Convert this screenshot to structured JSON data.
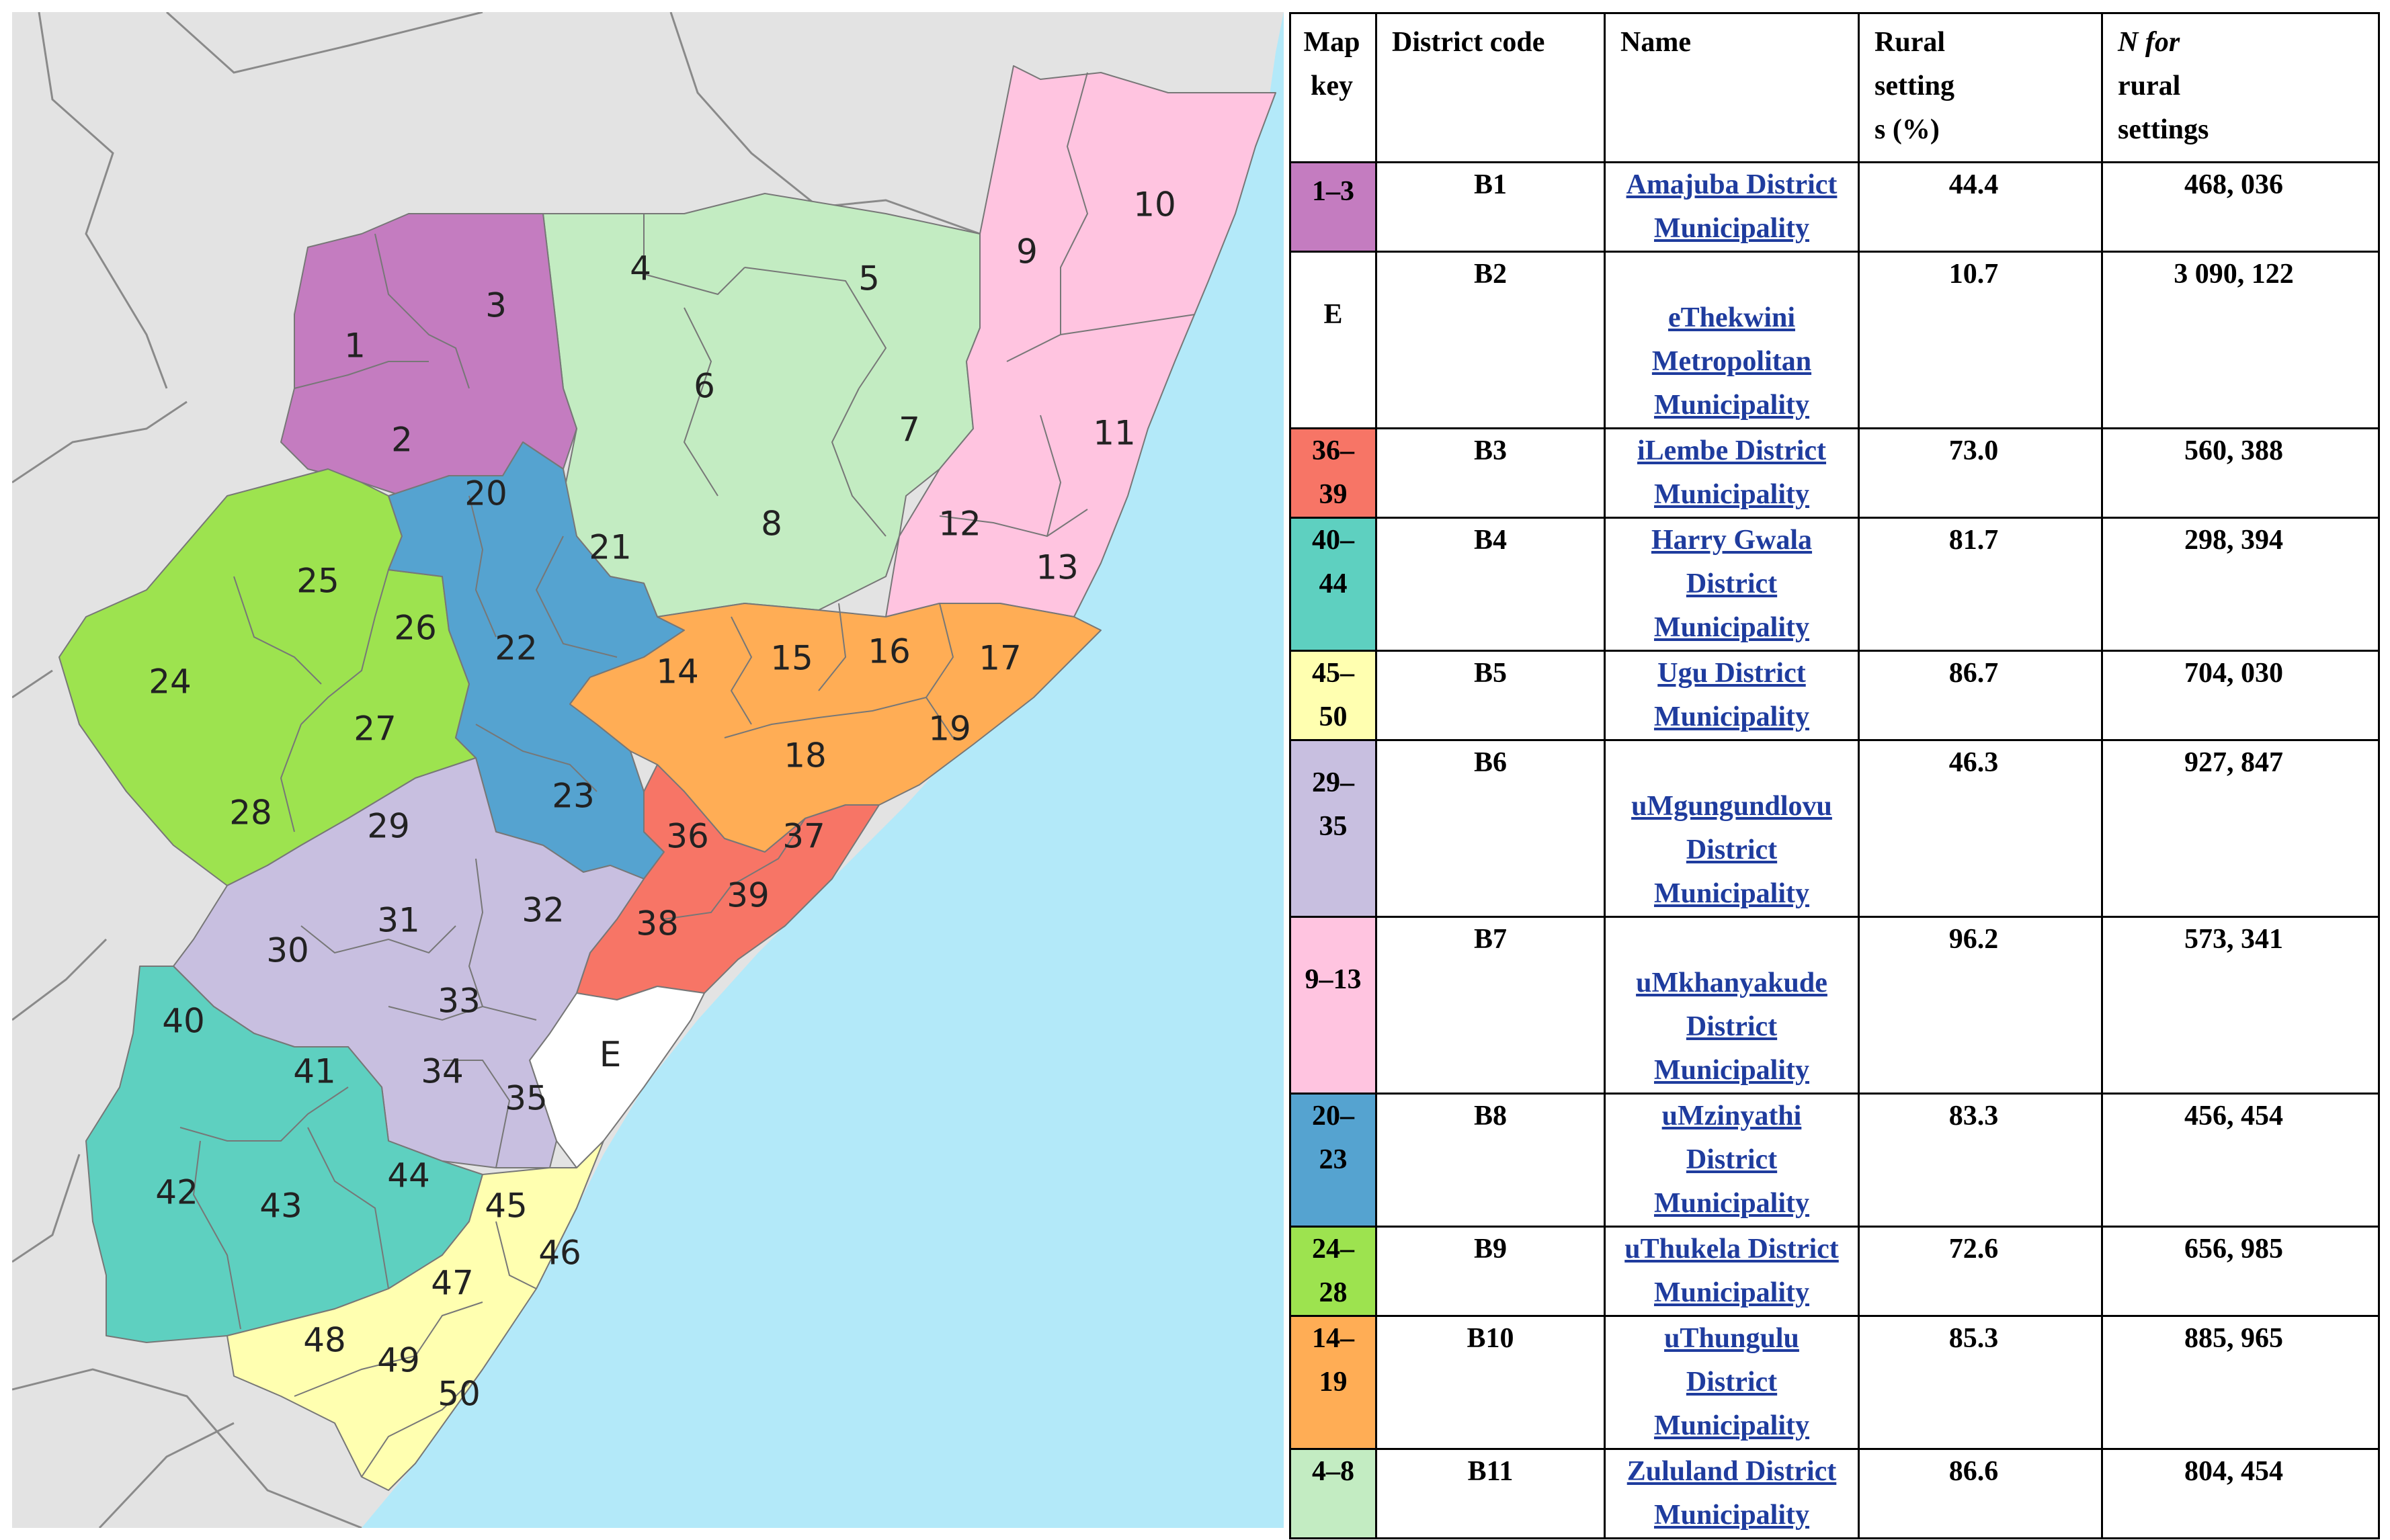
{
  "colors": {
    "sea": "#b3e9f9",
    "land_outside": "#e3e3e3",
    "border_outside": "#8a8a8a",
    "B1": "#c47cc0",
    "E": "#ffffff",
    "B3": "#f77566",
    "B4": "#5ed0c0",
    "B5": "#ffffb0",
    "B6": "#c8bfe0",
    "B7": "#ffc4e0",
    "B8": "#55a3d0",
    "B9": "#9de34f",
    "B10": "#ffad55",
    "B11": "#c3ecc2"
  },
  "map": {
    "labels": [
      "1",
      "2",
      "3",
      "4",
      "5",
      "6",
      "7",
      "8",
      "9",
      "10",
      "11",
      "12",
      "13",
      "14",
      "15",
      "16",
      "17",
      "18",
      "19",
      "20",
      "21",
      "22",
      "23",
      "24",
      "25",
      "26",
      "27",
      "28",
      "29",
      "30",
      "31",
      "32",
      "33",
      "34",
      "35",
      "36",
      "37",
      "38",
      "39",
      "40",
      "41",
      "42",
      "43",
      "44",
      "45",
      "46",
      "47",
      "48",
      "49",
      "50",
      "E"
    ]
  },
  "table": {
    "headers": {
      "map_key": [
        "Map",
        "key"
      ],
      "district_code": "District code",
      "name": "Name",
      "rural": [
        "Rural",
        "setting",
        "s (%)"
      ],
      "n_rural": [
        "N for",
        "rural",
        "settings"
      ]
    },
    "rows": [
      {
        "key": [
          "1–3"
        ],
        "key_color": "#c47cc0",
        "code": "B1",
        "name": [
          "Amajuba District",
          "Municipality"
        ],
        "rural": "44.4",
        "n": "468, 036"
      },
      {
        "key": [
          "E"
        ],
        "key_color": "#ffffff",
        "code": "B2",
        "name": [
          "eThekwini",
          "Metropolitan",
          "Municipality"
        ],
        "rural": "10.7",
        "n": "3 090, 122"
      },
      {
        "key": [
          "36–",
          "39"
        ],
        "key_color": "#f77566",
        "code": "B3",
        "name": [
          "iLembe District",
          "Municipality"
        ],
        "rural": "73.0",
        "n": "560, 388"
      },
      {
        "key": [
          "40–",
          "44"
        ],
        "key_color": "#5ed0c0",
        "code": "B4",
        "name": [
          "Harry Gwala",
          "District",
          "Municipality"
        ],
        "rural": "81.7",
        "n": "298, 394"
      },
      {
        "key": [
          "45–",
          "50"
        ],
        "key_color": "#ffffb0",
        "code": "B5",
        "name": [
          "Ugu District",
          "Municipality"
        ],
        "rural": "86.7",
        "n": "704, 030"
      },
      {
        "key": [
          "29–",
          "35"
        ],
        "key_color": "#c8bfe0",
        "code": "B6",
        "name": [
          "uMgungundlovu",
          "District",
          "Municipality"
        ],
        "rural": "46.3",
        "n": "927, 847"
      },
      {
        "key": [
          "9–13"
        ],
        "key_color": "#ffc4e0",
        "code": "B7",
        "name": [
          "uMkhanyakude",
          "District",
          "Municipality"
        ],
        "rural": "96.2",
        "n": "573, 341"
      },
      {
        "key": [
          "20–",
          "23"
        ],
        "key_color": "#55a3d0",
        "code": "B8",
        "name": [
          "uMzinyathi",
          "District",
          "Municipality"
        ],
        "rural": "83.3",
        "n": "456, 454"
      },
      {
        "key": [
          "24–",
          "28"
        ],
        "key_color": "#9de34f",
        "code": "B9",
        "name": [
          "uThukela District",
          "Municipality"
        ],
        "rural": "72.6",
        "n": "656, 985"
      },
      {
        "key": [
          "14–",
          "19"
        ],
        "key_color": "#ffad55",
        "code": "B10",
        "name": [
          "uThungulu",
          "District",
          "Municipality"
        ],
        "rural": "85.3",
        "n": "885, 965"
      },
      {
        "key": [
          "4–8"
        ],
        "key_color": "#c3ecc2",
        "code": "B11",
        "name": [
          "Zululand District",
          "Municipality"
        ],
        "rural": "86.6",
        "n": "804, 454"
      }
    ]
  }
}
